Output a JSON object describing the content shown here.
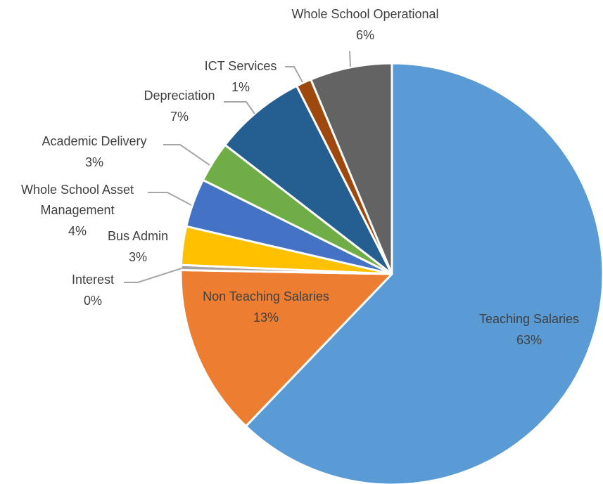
{
  "chart_data": {
    "type": "pie",
    "title": "",
    "start_angle_deg": 0,
    "direction": "clockwise",
    "slices": [
      {
        "name": "Teaching Salaries",
        "value": 63.4,
        "label": "63%",
        "color": "#5b9bd5"
      },
      {
        "name": "Non Teaching Salaries",
        "value": 13.4,
        "label": "13%",
        "color": "#ed7d31"
      },
      {
        "name": "Interest",
        "value": 0.4,
        "label": "0%",
        "color": "#a5a5a5"
      },
      {
        "name": "Bus Admin",
        "value": 3.0,
        "label": "3%",
        "color": "#ffc000"
      },
      {
        "name": "Whole School Asset Management",
        "value": 3.8,
        "label": "4%",
        "color": "#4472c4"
      },
      {
        "name": "Academic Delivery",
        "value": 3.2,
        "label": "3%",
        "color": "#70ad47"
      },
      {
        "name": "Depreciation",
        "value": 7.2,
        "label": "7%",
        "color": "#255e91"
      },
      {
        "name": "ICT Services",
        "value": 1.2,
        "label": "1%",
        "color": "#9e480e"
      },
      {
        "name": "Whole School Operational",
        "value": 6.4,
        "label": "6%",
        "color": "#636363"
      }
    ],
    "labels": {
      "teaching": [
        "Teaching Salaries",
        "63%"
      ],
      "non_teaching": [
        "Non Teaching Salaries",
        "13%"
      ],
      "interest": [
        "Interest",
        "0%"
      ],
      "bus_admin": [
        "Bus Admin",
        "3%"
      ],
      "asset": [
        "Whole School Asset",
        "Management",
        "4%"
      ],
      "academic": [
        "Academic Delivery",
        "3%"
      ],
      "depreciation": [
        "Depreciation",
        "7%"
      ],
      "ict": [
        "ICT Services",
        "1%"
      ],
      "operational": [
        "Whole School Operational",
        "6%"
      ]
    }
  }
}
